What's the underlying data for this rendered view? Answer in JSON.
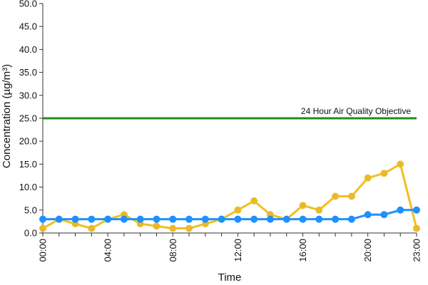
{
  "chart_data": {
    "type": "line",
    "title": "",
    "xlabel": "Time",
    "ylabel": "Concentration (µg/m³)",
    "ylim": [
      0,
      50
    ],
    "y_ticks": [
      "0.0",
      "5.0",
      "10.0",
      "15.0",
      "20.0",
      "25.0",
      "30.0",
      "35.0",
      "40.0",
      "45.0",
      "50.0"
    ],
    "x": [
      "00:00",
      "01:00",
      "02:00",
      "03:00",
      "04:00",
      "05:00",
      "06:00",
      "07:00",
      "08:00",
      "09:00",
      "10:00",
      "11:00",
      "12:00",
      "13:00",
      "14:00",
      "15:00",
      "16:00",
      "17:00",
      "18:00",
      "19:00",
      "20:00",
      "21:00",
      "22:00",
      "23:00"
    ],
    "x_ticks": [
      "00:00",
      "04:00",
      "08:00",
      "12:00",
      "16:00",
      "20:00",
      "23:00"
    ],
    "series": [
      {
        "color": "#f0c020",
        "marker_color": "#e8b830",
        "values": [
          1,
          3,
          2,
          1,
          3,
          4,
          2,
          1.5,
          1,
          1,
          2,
          3,
          5,
          7,
          4,
          3,
          6,
          5,
          8,
          8,
          12,
          13,
          15,
          1
        ]
      },
      {
        "color": "#1e90ff",
        "marker_color": "#1e90ff",
        "values": [
          3,
          3,
          3,
          3,
          3,
          3,
          3,
          3,
          3,
          3,
          3,
          3,
          3,
          3,
          3,
          3,
          3,
          3,
          3,
          3,
          4,
          4,
          5,
          5
        ]
      }
    ],
    "reference_line": {
      "value": 25,
      "label": "24 Hour Air Quality Objective",
      "color": "#228b22"
    },
    "grid": false
  }
}
